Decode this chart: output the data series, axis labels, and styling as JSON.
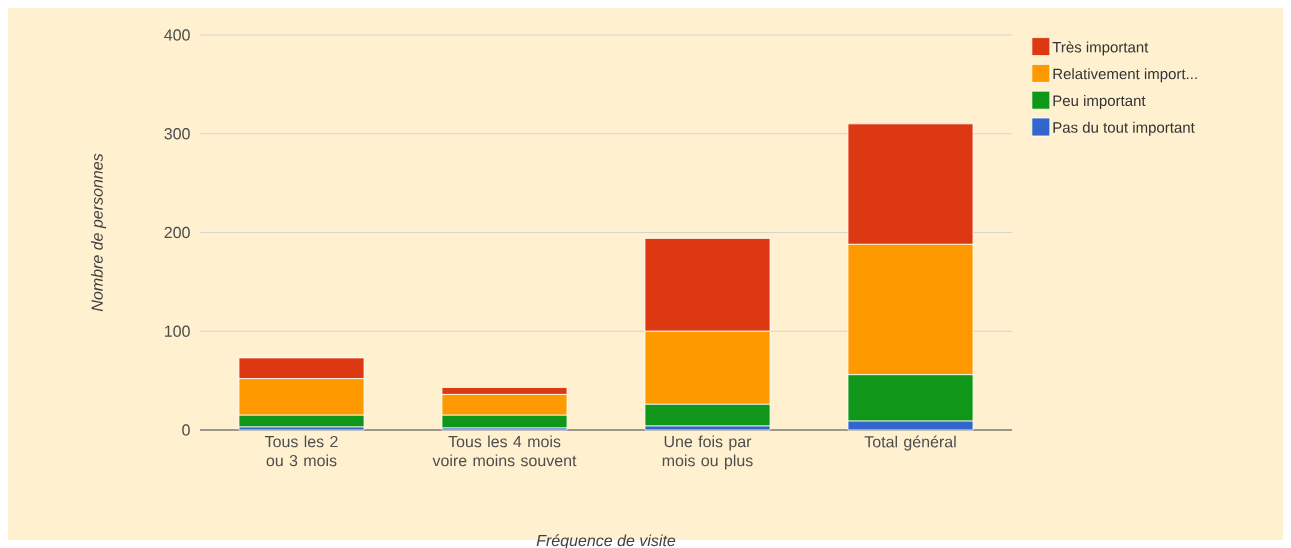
{
  "chart_data": {
    "type": "bar",
    "stacked": true,
    "xlabel": "Fréquence de visite",
    "ylabel": "Nombre de personnes",
    "categories": [
      "Tous les 2 ou 3 mois",
      "Tous les 4 mois voire moins souvent",
      "Une fois par mois ou plus",
      "Total général"
    ],
    "series": [
      {
        "name": "Pas du tout important",
        "color": "#3366cc",
        "values": [
          3,
          2,
          4,
          9
        ]
      },
      {
        "name": "Peu important",
        "color": "#109618",
        "values": [
          12,
          13,
          22,
          47
        ]
      },
      {
        "name": "Relativement import...",
        "color": "#ff9900",
        "values": [
          37,
          21,
          74,
          132
        ]
      },
      {
        "name": "Très important",
        "color": "#dc3912",
        "values": [
          21,
          7,
          94,
          122
        ]
      }
    ],
    "ylim": [
      0,
      400
    ],
    "yticks": [
      0,
      100,
      200,
      300,
      400
    ],
    "grid": "y",
    "legend": "top right"
  }
}
